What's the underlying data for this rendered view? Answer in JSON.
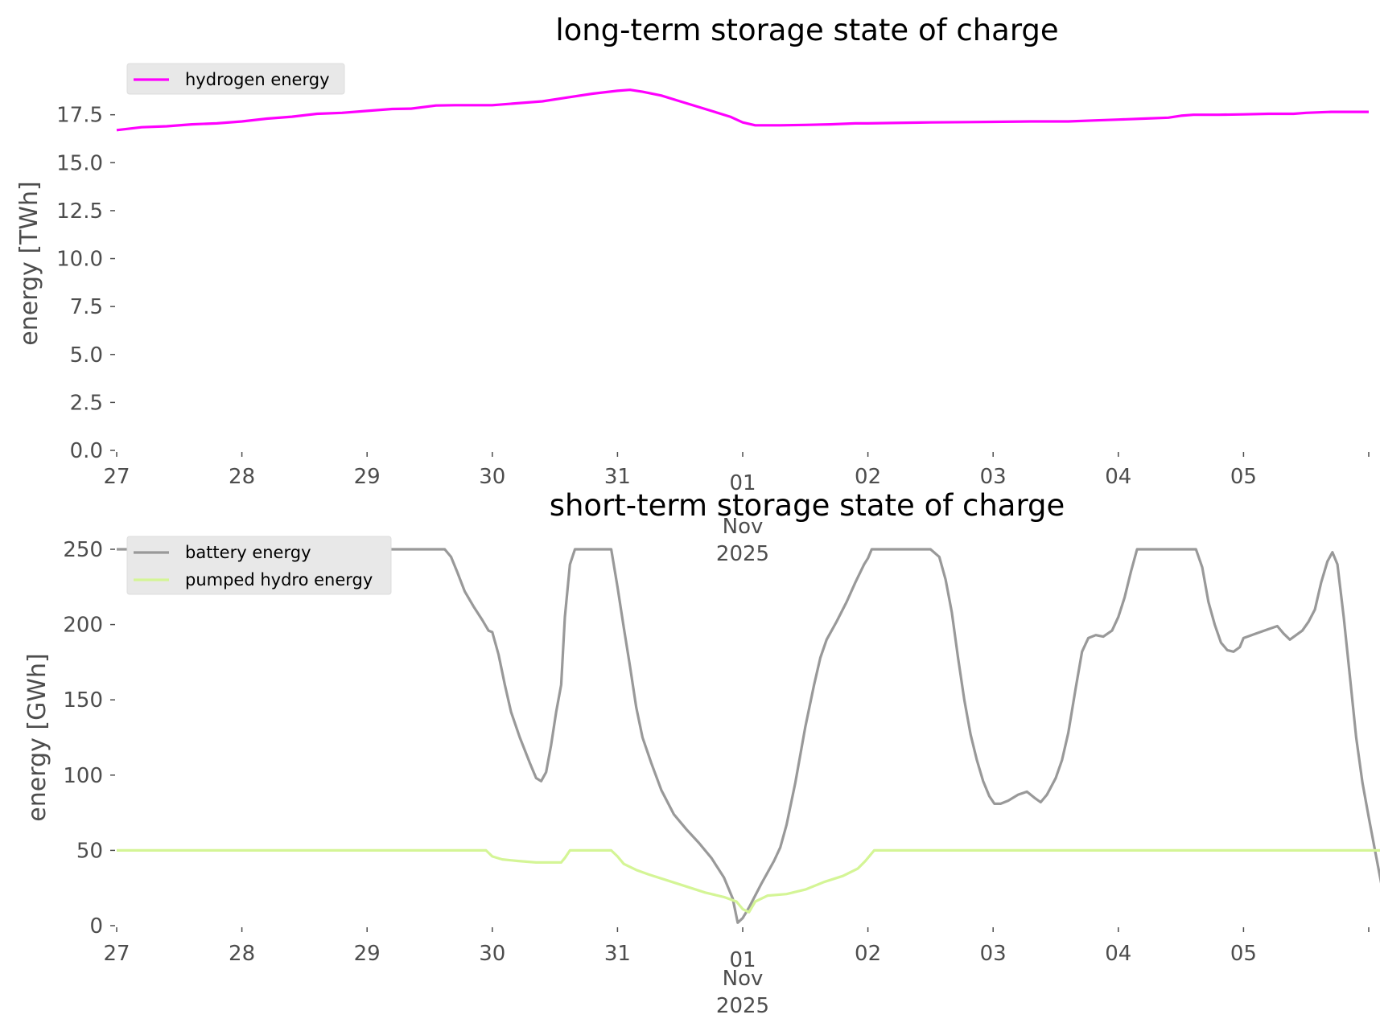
{
  "chart_data": [
    {
      "type": "line",
      "title": "long-term storage state of charge",
      "ylabel": "energy [TWh]",
      "xlabel": "",
      "x_ticks": [
        "27",
        "28",
        "29",
        "30",
        "31",
        "01",
        "02",
        "03",
        "04",
        "05"
      ],
      "x_sublabel": "Nov\n2025",
      "xlim": [
        "2025-10-27",
        "2025-11-06"
      ],
      "ylim": [
        0,
        19.5
      ],
      "y_ticks": [
        "0.0",
        "2.5",
        "5.0",
        "7.5",
        "10.0",
        "12.5",
        "15.0",
        "17.5"
      ],
      "grid": false,
      "legend": "top-left",
      "series": [
        {
          "name": "hydrogen energy",
          "color": "#ff00ff",
          "points": [
            [
              0,
              16.7
            ],
            [
              0.2,
              16.85
            ],
            [
              0.4,
              16.9
            ],
            [
              0.6,
              17.0
            ],
            [
              0.8,
              17.05
            ],
            [
              1.0,
              17.15
            ],
            [
              1.2,
              17.3
            ],
            [
              1.4,
              17.4
            ],
            [
              1.6,
              17.55
            ],
            [
              1.8,
              17.6
            ],
            [
              2.0,
              17.7
            ],
            [
              2.2,
              17.8
            ],
            [
              2.35,
              17.82
            ],
            [
              2.55,
              17.98
            ],
            [
              2.7,
              18.0
            ],
            [
              2.9,
              18.0
            ],
            [
              3.0,
              18.0
            ],
            [
              3.2,
              18.1
            ],
            [
              3.4,
              18.2
            ],
            [
              3.6,
              18.4
            ],
            [
              3.8,
              18.6
            ],
            [
              4.0,
              18.75
            ],
            [
              4.1,
              18.8
            ],
            [
              4.2,
              18.7
            ],
            [
              4.35,
              18.5
            ],
            [
              4.5,
              18.2
            ],
            [
              4.7,
              17.8
            ],
            [
              4.9,
              17.4
            ],
            [
              5.0,
              17.1
            ],
            [
              5.1,
              16.95
            ],
            [
              5.3,
              16.95
            ],
            [
              5.5,
              16.97
            ],
            [
              5.7,
              17.0
            ],
            [
              5.9,
              17.05
            ],
            [
              6.0,
              17.05
            ],
            [
              6.2,
              17.07
            ],
            [
              6.5,
              17.1
            ],
            [
              6.8,
              17.12
            ],
            [
              7.0,
              17.13
            ],
            [
              7.3,
              17.15
            ],
            [
              7.6,
              17.15
            ],
            [
              7.8,
              17.2
            ],
            [
              8.0,
              17.25
            ],
            [
              8.2,
              17.3
            ],
            [
              8.4,
              17.35
            ],
            [
              8.5,
              17.45
            ],
            [
              8.6,
              17.5
            ],
            [
              8.8,
              17.5
            ],
            [
              9.0,
              17.52
            ],
            [
              9.2,
              17.55
            ],
            [
              9.4,
              17.55
            ],
            [
              9.5,
              17.6
            ],
            [
              9.7,
              17.65
            ],
            [
              10.0,
              17.65
            ]
          ]
        }
      ]
    },
    {
      "type": "line",
      "title": "short-term storage state of charge",
      "ylabel": "energy [GWh]",
      "xlabel": "",
      "x_ticks": [
        "27",
        "28",
        "29",
        "30",
        "31",
        "01",
        "02",
        "03",
        "04",
        "05"
      ],
      "x_sublabel": "Nov\n2025",
      "xlim": [
        "2025-10-27",
        "2025-11-06"
      ],
      "ylim": [
        0,
        250
      ],
      "y_ticks": [
        "0",
        "50",
        "100",
        "150",
        "200",
        "250"
      ],
      "grid": false,
      "legend": "top-left",
      "series": [
        {
          "name": "battery energy",
          "color": "#999999",
          "points": [
            [
              0,
              250
            ],
            [
              2.62,
              250
            ],
            [
              2.67,
              245
            ],
            [
              2.72,
              235
            ],
            [
              2.78,
              222
            ],
            [
              2.85,
              212
            ],
            [
              2.92,
              203
            ],
            [
              2.97,
              196
            ],
            [
              3.0,
              195
            ],
            [
              3.05,
              180
            ],
            [
              3.1,
              160
            ],
            [
              3.15,
              142
            ],
            [
              3.22,
              125
            ],
            [
              3.3,
              108
            ],
            [
              3.35,
              98
            ],
            [
              3.39,
              96
            ],
            [
              3.43,
              102
            ],
            [
              3.47,
              120
            ],
            [
              3.51,
              142
            ],
            [
              3.55,
              160
            ],
            [
              3.58,
              205
            ],
            [
              3.62,
              240
            ],
            [
              3.66,
              250
            ],
            [
              3.95,
              250
            ],
            [
              4.0,
              225
            ],
            [
              4.05,
              198
            ],
            [
              4.1,
              172
            ],
            [
              4.15,
              145
            ],
            [
              4.2,
              125
            ],
            [
              4.27,
              108
            ],
            [
              4.35,
              90
            ],
            [
              4.45,
              74
            ],
            [
              4.55,
              64
            ],
            [
              4.65,
              55
            ],
            [
              4.75,
              45
            ],
            [
              4.85,
              32
            ],
            [
              4.92,
              18
            ],
            [
              4.96,
              2
            ],
            [
              5.0,
              5
            ],
            [
              5.05,
              12
            ],
            [
              5.15,
              28
            ],
            [
              5.25,
              43
            ],
            [
              5.3,
              52
            ],
            [
              5.35,
              67
            ],
            [
              5.42,
              95
            ],
            [
              5.5,
              132
            ],
            [
              5.57,
              160
            ],
            [
              5.62,
              178
            ],
            [
              5.67,
              190
            ],
            [
              5.75,
              202
            ],
            [
              5.83,
              215
            ],
            [
              5.9,
              228
            ],
            [
              5.97,
              240
            ],
            [
              6.0,
              244
            ],
            [
              6.03,
              250
            ],
            [
              6.5,
              250
            ],
            [
              6.57,
              245
            ],
            [
              6.62,
              230
            ],
            [
              6.67,
              208
            ],
            [
              6.72,
              178
            ],
            [
              6.77,
              150
            ],
            [
              6.82,
              127
            ],
            [
              6.87,
              110
            ],
            [
              6.92,
              96
            ],
            [
              6.97,
              86
            ],
            [
              7.01,
              81
            ],
            [
              7.06,
              81
            ],
            [
              7.12,
              83
            ],
            [
              7.2,
              87
            ],
            [
              7.27,
              89
            ],
            [
              7.33,
              85
            ],
            [
              7.38,
              82
            ],
            [
              7.43,
              87
            ],
            [
              7.5,
              98
            ],
            [
              7.55,
              110
            ],
            [
              7.6,
              128
            ],
            [
              7.66,
              158
            ],
            [
              7.71,
              182
            ],
            [
              7.76,
              191
            ],
            [
              7.82,
              193
            ],
            [
              7.88,
              192
            ],
            [
              7.95,
              196
            ],
            [
              8.0,
              205
            ],
            [
              8.05,
              218
            ],
            [
              8.1,
              235
            ],
            [
              8.15,
              250
            ],
            [
              8.62,
              250
            ],
            [
              8.67,
              238
            ],
            [
              8.72,
              215
            ],
            [
              8.77,
              200
            ],
            [
              8.82,
              188
            ],
            [
              8.87,
              183
            ],
            [
              8.92,
              182
            ],
            [
              8.97,
              185
            ],
            [
              9.0,
              191
            ],
            [
              9.1,
              194
            ],
            [
              9.2,
              197
            ],
            [
              9.27,
              199
            ],
            [
              9.32,
              194
            ],
            [
              9.37,
              190
            ],
            [
              9.47,
              196
            ],
            [
              9.52,
              202
            ],
            [
              9.57,
              210
            ],
            [
              9.62,
              228
            ],
            [
              9.67,
              242
            ],
            [
              9.71,
              248
            ],
            [
              9.75,
              240
            ],
            [
              9.8,
              205
            ],
            [
              9.85,
              165
            ],
            [
              9.9,
              125
            ],
            [
              9.95,
              95
            ],
            [
              10.0,
              72
            ],
            [
              10.05,
              50
            ],
            [
              10.1,
              28
            ]
          ]
        },
        {
          "name": "pumped hydro energy",
          "color": "#d4f596",
          "points": [
            [
              0,
              50
            ],
            [
              2.95,
              50
            ],
            [
              3.0,
              46
            ],
            [
              3.08,
              44
            ],
            [
              3.2,
              43
            ],
            [
              3.35,
              42
            ],
            [
              3.55,
              42
            ],
            [
              3.58,
              45
            ],
            [
              3.62,
              50
            ],
            [
              3.95,
              50
            ],
            [
              4.0,
              46
            ],
            [
              4.05,
              41
            ],
            [
              4.15,
              37
            ],
            [
              4.25,
              34
            ],
            [
              4.4,
              30
            ],
            [
              4.55,
              26
            ],
            [
              4.7,
              22
            ],
            [
              4.85,
              19
            ],
            [
              4.95,
              16
            ],
            [
              5.0,
              11
            ],
            [
              5.05,
              9
            ],
            [
              5.1,
              16
            ],
            [
              5.2,
              20
            ],
            [
              5.35,
              21
            ],
            [
              5.5,
              24
            ],
            [
              5.65,
              29
            ],
            [
              5.8,
              33
            ],
            [
              5.92,
              38
            ],
            [
              5.98,
              43
            ],
            [
              6.05,
              50
            ],
            [
              10.1,
              50
            ]
          ]
        }
      ]
    }
  ]
}
